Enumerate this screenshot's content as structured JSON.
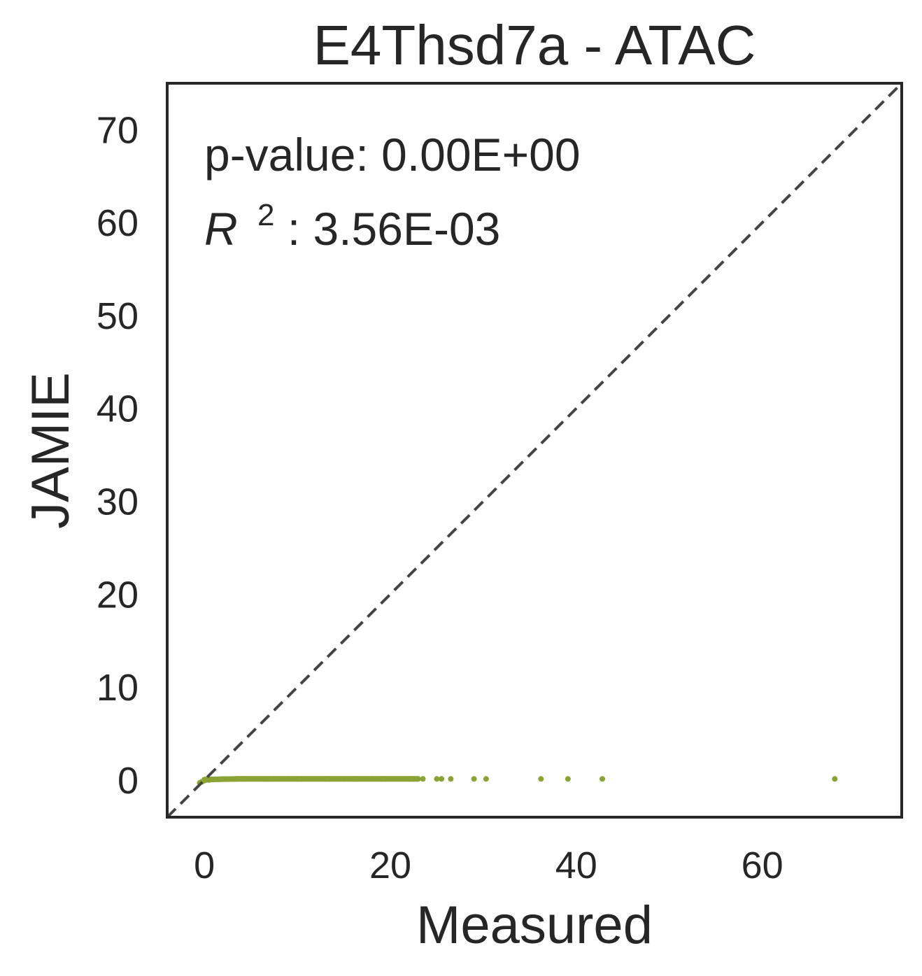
{
  "chart_data": {
    "type": "scatter",
    "title": "E4Thsd7a - ATAC",
    "xlabel": "Measured",
    "ylabel": "JAMIE",
    "xlim": [
      -4,
      75
    ],
    "ylim": [
      -4,
      75
    ],
    "xticks": [
      0,
      20,
      40,
      60
    ],
    "yticks": [
      0,
      10,
      20,
      30,
      40,
      50,
      60,
      70
    ],
    "grid": false,
    "legend": "none",
    "reference_line": "y = x",
    "point_color": "#8ba336",
    "annotations": {
      "pvalue_label": "p-value: 0.00E+00",
      "r2_symbol": "R",
      "r2_superscript": "2",
      "r2_value": ": 3.56E-03"
    },
    "points": {
      "x": [
        -0.5,
        -0.3,
        -0.1,
        0.0,
        0.2,
        0.5,
        1,
        1.5,
        2,
        2.5,
        3,
        3.5,
        4,
        4.5,
        5,
        5.5,
        6,
        6.5,
        7,
        7.5,
        8,
        8.5,
        9,
        9.5,
        10,
        10.5,
        11,
        11.5,
        12,
        12.5,
        13,
        13.5,
        14,
        14.5,
        15,
        15.5,
        16,
        16.5,
        17,
        17.5,
        18,
        18.5,
        19,
        19.5,
        20,
        20.5,
        21,
        21.5,
        22,
        22.5,
        23,
        23.5,
        25,
        25.5,
        26.5,
        29,
        30.3,
        36.2,
        39.1,
        42.8,
        67.8
      ],
      "y": [
        -0.3,
        -0.2,
        -0.1,
        -0.05,
        0.0,
        0.0,
        0.05,
        0.08,
        0.1,
        0.1,
        0.1,
        0.12,
        0.12,
        0.12,
        0.12,
        0.12,
        0.12,
        0.12,
        0.12,
        0.12,
        0.12,
        0.12,
        0.12,
        0.12,
        0.12,
        0.12,
        0.12,
        0.12,
        0.12,
        0.12,
        0.12,
        0.12,
        0.12,
        0.12,
        0.12,
        0.12,
        0.12,
        0.12,
        0.12,
        0.12,
        0.12,
        0.12,
        0.12,
        0.12,
        0.12,
        0.12,
        0.12,
        0.12,
        0.12,
        0.12,
        0.12,
        0.12,
        0.12,
        0.12,
        0.12,
        0.12,
        0.12,
        0.12,
        0.12,
        0.12,
        0.12
      ]
    }
  }
}
